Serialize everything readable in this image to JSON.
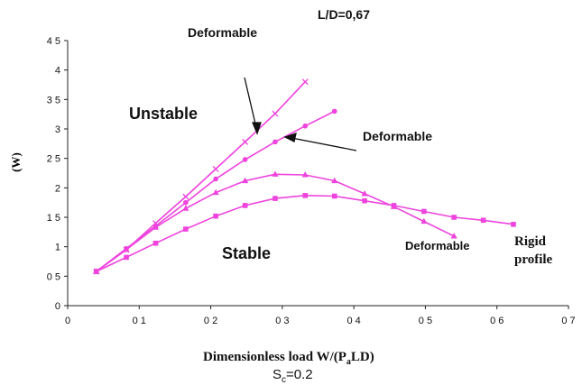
{
  "chart_data": {
    "type": "line",
    "title": "L/D=0,67",
    "xlabel_main": "Dimensionless load  W/(P",
    "xlabel_sub": "a",
    "xlabel_tail": "LD)",
    "sc_main": "S",
    "sc_sub": "c",
    "sc_tail": "=0.2",
    "ylabel": "(W)",
    "xlim": [
      0,
      0.7
    ],
    "ylim": [
      0,
      4.5
    ],
    "x_ticks": [
      "0",
      "0 1",
      "0 2",
      "0 3",
      "0 4",
      "0 5",
      "0 6",
      "0 7"
    ],
    "y_ticks": [
      "0",
      "0 5",
      "1",
      "1 5",
      "2",
      "2 5",
      "3",
      "3 5",
      "4",
      "4 5"
    ],
    "grid": false,
    "color": "#ee44dd",
    "series": [
      {
        "marker": "cross",
        "x": [
          0.04,
          0.082,
          0.123,
          0.165,
          0.207,
          0.248,
          0.29,
          0.332
        ],
        "y": [
          0.58,
          0.95,
          1.4,
          1.85,
          2.32,
          2.78,
          3.26,
          3.8
        ]
      },
      {
        "marker": "dot",
        "x": [
          0.04,
          0.082,
          0.123,
          0.165,
          0.207,
          0.248,
          0.29,
          0.332,
          0.373
        ],
        "y": [
          0.58,
          0.97,
          1.35,
          1.75,
          2.15,
          2.48,
          2.78,
          3.05,
          3.3
        ]
      },
      {
        "marker": "triangle",
        "x": [
          0.04,
          0.082,
          0.123,
          0.165,
          0.207,
          0.248,
          0.29,
          0.332,
          0.373,
          0.415,
          0.456,
          0.498,
          0.54
        ],
        "y": [
          0.58,
          0.95,
          1.33,
          1.65,
          1.92,
          2.12,
          2.23,
          2.22,
          2.12,
          1.9,
          1.68,
          1.43,
          1.18
        ]
      },
      {
        "marker": "square",
        "x": [
          0.04,
          0.082,
          0.123,
          0.165,
          0.207,
          0.248,
          0.29,
          0.332,
          0.373,
          0.415,
          0.456,
          0.498,
          0.54,
          0.581,
          0.623
        ],
        "y": [
          0.58,
          0.82,
          1.06,
          1.3,
          1.52,
          1.7,
          1.82,
          1.87,
          1.86,
          1.78,
          1.7,
          1.6,
          1.5,
          1.45,
          1.38
        ]
      }
    ],
    "annotations": {
      "unstable": "Unstable",
      "stable": "Stable",
      "deformable_top": "Deformable",
      "deformable_mid": "Deformable",
      "deformable_low": "Deformable",
      "rigid1": "Rigid",
      "rigid2": "profile"
    }
  }
}
